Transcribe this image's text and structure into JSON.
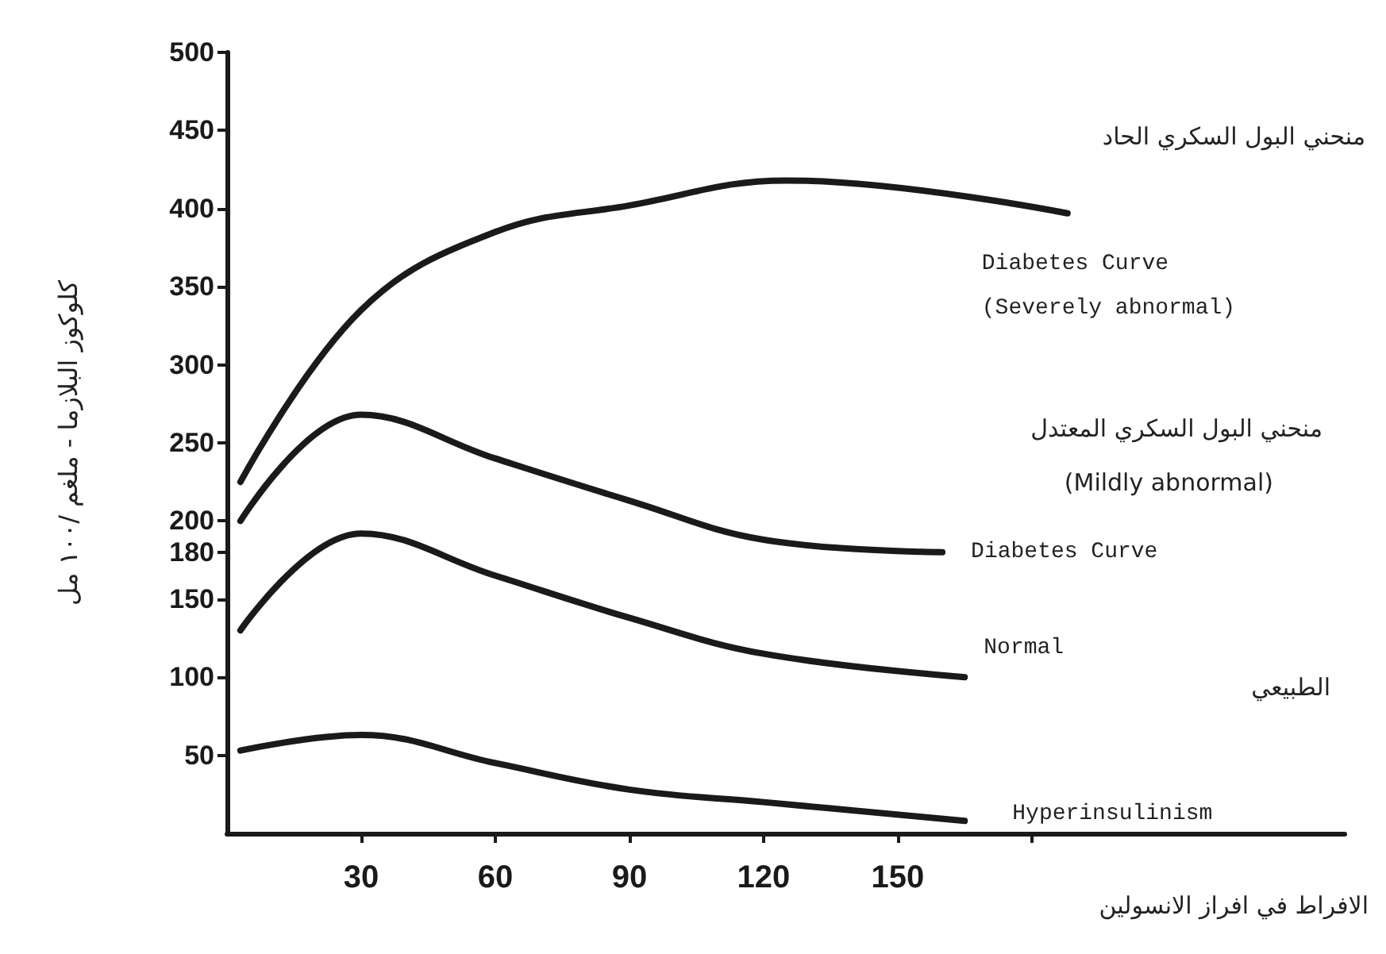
{
  "chart_data": {
    "type": "line",
    "xlabel": "الافراط في افراز الانسولين",
    "ylabel": "كلوكوز البلازما - ملغم /١٠٠ مل",
    "x": [
      3,
      30,
      60,
      90,
      120,
      165
    ],
    "series": [
      {
        "name": "Diabetes Curve (Severely abnormal)",
        "color": "#1a1a1a",
        "x": [
          3,
          30,
          60,
          90,
          125,
          188
        ],
        "values": [
          225,
          335,
          385,
          402,
          418,
          397
        ]
      },
      {
        "name": "Diabetes Curve",
        "color": "#1a1a1a",
        "x": [
          3,
          30,
          60,
          90,
          120,
          160
        ],
        "values": [
          200,
          268,
          240,
          213,
          188,
          180
        ]
      },
      {
        "name": "Normal",
        "color": "#1a1a1a",
        "values": [
          130,
          192,
          165,
          138,
          115,
          100
        ]
      },
      {
        "name": "Hyperinsulinism",
        "color": "#1a1a1a",
        "values": [
          53,
          63,
          45,
          28,
          20,
          8
        ]
      }
    ],
    "annotations": [
      "منحني البول السكري الحاد",
      "منحني البول السكري المعتدل",
      "(Mildly abnormal)",
      "الطبيعي"
    ],
    "xlim": [
      0,
      250
    ],
    "xticks": [
      30,
      60,
      90,
      120,
      150,
      {
        "value": 180,
        "label": null
      }
    ],
    "ylim": [
      0,
      500
    ],
    "yticks": [
      50,
      100,
      150,
      {
        "value": 180,
        "label": "180"
      },
      200,
      250,
      300,
      350,
      400,
      450,
      500
    ],
    "grid": false,
    "legend": false,
    "line_style": "solid",
    "marker": "none"
  }
}
